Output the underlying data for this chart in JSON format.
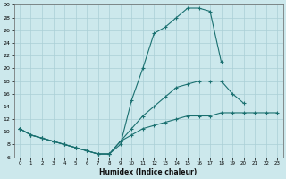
{
  "xlabel": "Humidex (Indice chaleur)",
  "bg_color": "#cce8ec",
  "line_color": "#1a7070",
  "grid_color": "#aacfd6",
  "xlim": [
    -0.5,
    23.5
  ],
  "ylim": [
    6,
    30
  ],
  "xticks": [
    0,
    1,
    2,
    3,
    4,
    5,
    6,
    7,
    8,
    9,
    10,
    11,
    12,
    13,
    14,
    15,
    16,
    17,
    18,
    19,
    20,
    21,
    22,
    23
  ],
  "yticks": [
    6,
    8,
    10,
    12,
    14,
    16,
    18,
    20,
    22,
    24,
    26,
    28,
    30
  ],
  "curve1_x": [
    0,
    1,
    2,
    3,
    4,
    5,
    6,
    7,
    8,
    9,
    10,
    11,
    12,
    13,
    14,
    15,
    16,
    17,
    18
  ],
  "curve1_y": [
    10.5,
    9.5,
    9.0,
    8.5,
    8.0,
    7.5,
    7.0,
    6.5,
    6.5,
    8.0,
    15.0,
    20.0,
    25.5,
    26.5,
    28.0,
    29.5,
    29.5,
    29.0,
    21.0
  ],
  "curve2_x": [
    0,
    1,
    2,
    3,
    4,
    5,
    6,
    7,
    8,
    9,
    10,
    11,
    12,
    13,
    14,
    15,
    16,
    17,
    18,
    19,
    20
  ],
  "curve2_y": [
    10.5,
    9.5,
    9.0,
    8.5,
    8.0,
    7.5,
    7.0,
    6.5,
    6.5,
    8.5,
    10.5,
    12.5,
    14.0,
    15.5,
    17.0,
    17.5,
    18.0,
    18.0,
    18.0,
    16.0,
    14.5
  ],
  "curve3_x": [
    0,
    1,
    2,
    3,
    4,
    5,
    6,
    7,
    8,
    9,
    10,
    11,
    12,
    13,
    14,
    15,
    16,
    17,
    18,
    19,
    20,
    21,
    22,
    23
  ],
  "curve3_y": [
    10.5,
    9.5,
    9.0,
    8.5,
    8.0,
    7.5,
    7.0,
    6.5,
    6.5,
    8.5,
    9.5,
    10.5,
    11.0,
    11.5,
    12.0,
    12.5,
    12.5,
    12.5,
    13.0,
    13.0,
    13.0,
    13.0,
    13.0,
    13.0
  ]
}
